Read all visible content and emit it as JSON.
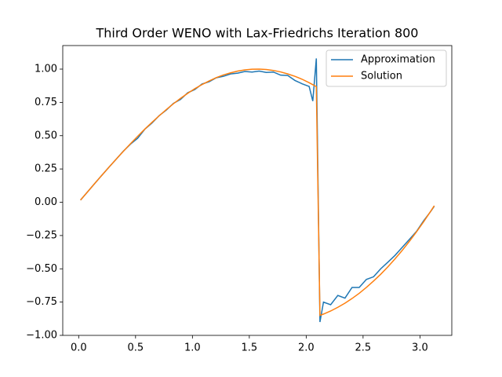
{
  "chart_data": {
    "type": "line",
    "title": "Third Order WENO with Lax-Friedrichs Iteration 800",
    "x": [
      0.016,
      0.079,
      0.141,
      0.204,
      0.267,
      0.33,
      0.393,
      0.456,
      0.518,
      0.581,
      0.644,
      0.707,
      0.77,
      0.833,
      0.895,
      0.958,
      1.021,
      1.084,
      1.147,
      1.21,
      1.272,
      1.335,
      1.398,
      1.461,
      1.524,
      1.587,
      1.649,
      1.712,
      1.775,
      1.838,
      1.901,
      1.964,
      2.026,
      2.058,
      2.089,
      2.121,
      2.152,
      2.215,
      2.278,
      2.341,
      2.403,
      2.466,
      2.529,
      2.592,
      2.655,
      2.718,
      2.78,
      2.843,
      2.906,
      2.969,
      3.032,
      3.094,
      3.126
    ],
    "series": [
      {
        "name": "Approximation",
        "color": "#1f77b4",
        "values": [
          0.016,
          0.079,
          0.141,
          0.203,
          0.264,
          0.324,
          0.384,
          0.437,
          0.48,
          0.548,
          0.595,
          0.65,
          0.692,
          0.743,
          0.772,
          0.822,
          0.847,
          0.888,
          0.905,
          0.935,
          0.946,
          0.964,
          0.97,
          0.982,
          0.978,
          0.985,
          0.975,
          0.978,
          0.955,
          0.952,
          0.915,
          0.89,
          0.87,
          0.76,
          1.08,
          -0.9,
          -0.75,
          -0.77,
          -0.7,
          -0.72,
          -0.64,
          -0.64,
          -0.58,
          -0.56,
          -0.5,
          -0.45,
          -0.4,
          -0.34,
          -0.28,
          -0.22,
          -0.14,
          -0.07,
          -0.03
        ]
      },
      {
        "name": "Solution",
        "color": "#ff7f0e",
        "values": [
          0.016,
          0.079,
          0.141,
          0.203,
          0.264,
          0.324,
          0.383,
          0.44,
          0.495,
          0.549,
          0.6,
          0.649,
          0.696,
          0.74,
          0.78,
          0.818,
          0.853,
          0.884,
          0.911,
          0.936,
          0.956,
          0.972,
          0.985,
          0.994,
          0.999,
          1.0,
          0.997,
          0.99,
          0.979,
          0.964,
          0.946,
          0.924,
          0.898,
          0.883,
          0.869,
          -0.85,
          -0.84,
          -0.817,
          -0.789,
          -0.758,
          -0.723,
          -0.684,
          -0.64,
          -0.592,
          -0.541,
          -0.485,
          -0.426,
          -0.363,
          -0.295,
          -0.223,
          -0.147,
          -0.068,
          -0.026
        ]
      }
    ],
    "xlim": [
      -0.14,
      3.28
    ],
    "ylim": [
      -1.0,
      1.177
    ],
    "xticks": [
      {
        "value": 0,
        "label": "0.0"
      },
      0.5,
      {
        "value": 1,
        "label": "1.0"
      },
      1.5,
      {
        "value": 2,
        "label": "2.0"
      },
      2.5,
      {
        "value": 3,
        "label": "3.0"
      }
    ],
    "yticks": [
      {
        "value": -1,
        "label": "−1.00"
      },
      {
        "value": -0.75,
        "label": "−0.75"
      },
      {
        "value": -0.5,
        "label": "−0.50"
      },
      {
        "value": -0.25,
        "label": "−0.25"
      },
      {
        "value": 0,
        "label": "0.00"
      },
      0.25,
      {
        "value": 0.5,
        "label": "0.50"
      },
      0.75,
      {
        "value": 1,
        "label": "1.00"
      }
    ],
    "legend": "upper right"
  }
}
